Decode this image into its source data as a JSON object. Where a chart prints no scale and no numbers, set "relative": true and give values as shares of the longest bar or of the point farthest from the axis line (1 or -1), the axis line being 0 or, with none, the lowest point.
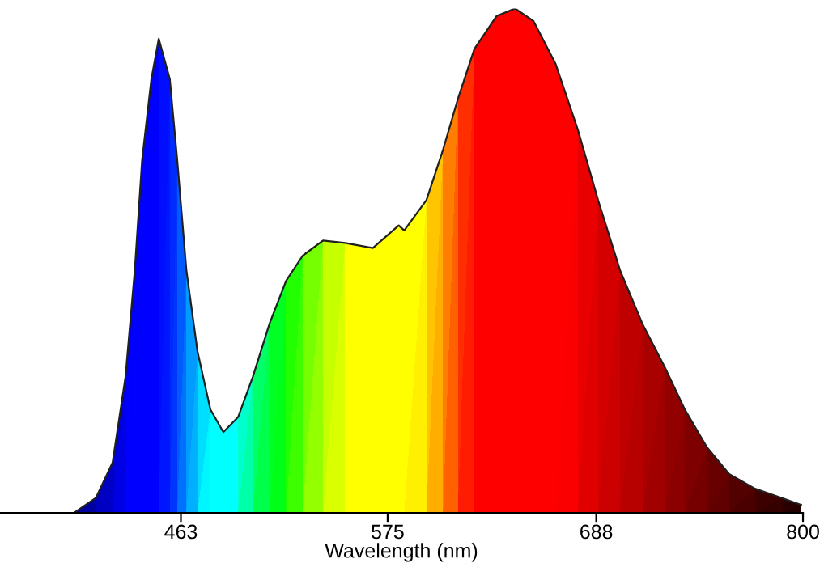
{
  "chart_data": {
    "type": "line",
    "relative": true,
    "xlabel": "Wavelength (nm)",
    "xlim": [
      365,
      800
    ],
    "xticks": [
      463,
      575,
      688,
      800
    ],
    "grid": false,
    "legend": false,
    "series": [
      {
        "color": "#202020",
        "x": [
          405,
          417,
          426,
          433,
          438,
          442,
          447,
          451,
          457,
          461,
          466,
          472,
          479,
          486,
          494,
          502,
          511,
          520,
          529,
          540,
          552,
          567,
          581,
          584,
          596,
          605,
          613,
          622,
          634,
          644,
          654,
          666,
          678,
          689,
          701,
          713,
          725,
          736,
          748,
          760,
          774,
          789,
          799
        ],
        "values": [
          0,
          0.03,
          0.1,
          0.27,
          0.48,
          0.7,
          0.86,
          0.94,
          0.86,
          0.7,
          0.48,
          0.32,
          0.205,
          0.16,
          0.19,
          0.27,
          0.375,
          0.46,
          0.51,
          0.54,
          0.535,
          0.525,
          0.57,
          0.56,
          0.62,
          0.72,
          0.82,
          0.92,
          0.985,
          1.0,
          0.975,
          0.89,
          0.76,
          0.62,
          0.48,
          0.375,
          0.29,
          0.205,
          0.13,
          0.077,
          0.048,
          0.029,
          0.016
        ],
        "colors": [
          "#000060",
          "#000080",
          "#000099",
          "#0000b0",
          "#0000c8",
          "#0000d8",
          "#0000e8",
          "#0000f5",
          "#0010ff",
          "#0030ff",
          "#0060ff",
          "#0090ff",
          "#00c8ff",
          "#00ffff",
          "#00ffb0",
          "#00ff60",
          "#00ff20",
          "#00ff00",
          "#40ff00",
          "#80ff00",
          "#b0ff00",
          "#e0ff00",
          "#ffe000",
          "#ffd000",
          "#ffa000",
          "#ff7000",
          "#ff3000",
          "#ff0000",
          "#f00000",
          "#e00000",
          "#d50000",
          "#c80000",
          "#b00000",
          "#a00000",
          "#900000",
          "#800000",
          "#700000",
          "#600000",
          "#500000",
          "#400000",
          "#300000",
          "#200000",
          "#100000"
        ]
      }
    ]
  }
}
